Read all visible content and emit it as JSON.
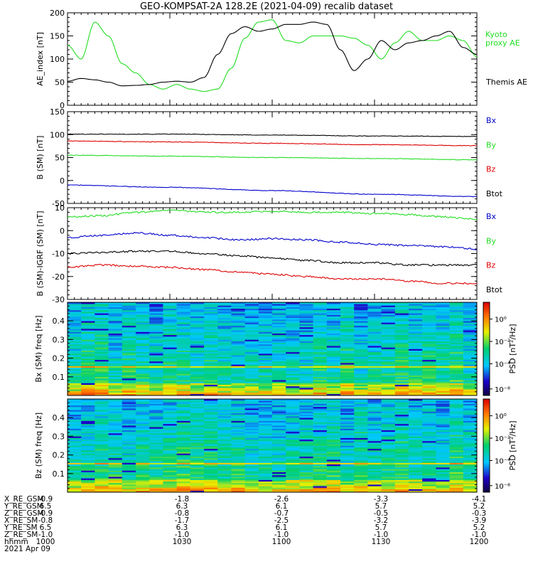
{
  "title": "GEO-KOMPSAT-2A 128.2E (2021-04-09) recalib dataset",
  "colors": {
    "black": "#000000",
    "green": "#22dd22",
    "blue": "#0000cc",
    "red": "#dd0000"
  },
  "xticks": 5,
  "chart_data": [
    {
      "type": "line",
      "ylabel": "AE_index [nT]",
      "ylim": [
        0,
        200
      ],
      "yticks": [
        0,
        50,
        100,
        150,
        200
      ],
      "x": [
        0,
        4,
        8,
        12,
        16,
        20,
        24,
        28,
        32,
        36,
        40,
        44,
        48,
        52,
        56,
        60,
        64,
        68,
        72,
        76,
        80,
        84,
        88,
        92,
        96,
        100,
        104,
        108,
        112,
        116,
        120
      ],
      "series": [
        {
          "name": "Kyoto proxy AE",
          "color": "#22dd22",
          "values": [
            130,
            100,
            180,
            150,
            90,
            70,
            45,
            35,
            45,
            35,
            30,
            35,
            80,
            145,
            180,
            185,
            140,
            135,
            150,
            150,
            150,
            145,
            130,
            100,
            135,
            160,
            140,
            140,
            150,
            140,
            105
          ]
        },
        {
          "name": "Themis AE",
          "color": "#000000",
          "values": [
            52,
            58,
            55,
            50,
            42,
            43,
            45,
            50,
            52,
            50,
            60,
            110,
            155,
            170,
            160,
            165,
            175,
            175,
            180,
            175,
            120,
            75,
            100,
            140,
            120,
            135,
            140,
            150,
            160,
            125,
            110
          ]
        }
      ],
      "legend": [
        "Kyoto proxy AE",
        "Themis AE"
      ]
    },
    {
      "type": "line",
      "ylabel": "B (SM) [nT]",
      "ylim": [
        -50,
        150
      ],
      "yticks": [
        -50,
        0,
        50,
        100,
        150
      ],
      "x": [
        0,
        30,
        60,
        90,
        120
      ],
      "series": [
        {
          "name": "Btot",
          "color": "#000000",
          "values": [
            101,
            101,
            99,
            97,
            96
          ]
        },
        {
          "name": "By",
          "color": "#22dd22",
          "values": [
            55,
            53,
            50,
            48,
            45
          ]
        },
        {
          "name": "Bz",
          "color": "#dd0000",
          "values": [
            86,
            84,
            81,
            78,
            76
          ]
        },
        {
          "name": "Bx",
          "color": "#0000cc",
          "values": [
            -10,
            -15,
            -22,
            -30,
            -35
          ]
        }
      ],
      "legend": [
        "Bx",
        "By",
        "Bz",
        "Btot"
      ]
    },
    {
      "type": "line",
      "ylabel": "B (SM)-IGRF (SM) [nT]",
      "ylim": [
        -30,
        10
      ],
      "yticks": [
        -30,
        -20,
        -10,
        0,
        10
      ],
      "x": [
        0,
        10,
        20,
        30,
        40,
        50,
        60,
        70,
        80,
        90,
        100,
        110,
        120
      ],
      "series": [
        {
          "name": "By",
          "color": "#22dd22",
          "values": [
            6,
            6.5,
            8,
            9,
            8,
            8,
            8.5,
            8,
            8,
            7.5,
            7,
            6,
            5
          ]
        },
        {
          "name": "Bx",
          "color": "#0000cc",
          "values": [
            -3,
            -2,
            -1,
            -2,
            -3,
            -4,
            -3.5,
            -4,
            -5,
            -6,
            -6.5,
            -7,
            -8
          ]
        },
        {
          "name": "Btot",
          "color": "#000000",
          "values": [
            -10,
            -9.5,
            -9,
            -9,
            -10,
            -11,
            -12,
            -13,
            -14,
            -14,
            -15,
            -15,
            -15
          ]
        },
        {
          "name": "Bz",
          "color": "#dd0000",
          "values": [
            -16,
            -15,
            -15.5,
            -16,
            -17,
            -18,
            -19,
            -20,
            -21,
            -21,
            -22,
            -23,
            -23
          ]
        }
      ],
      "legend": [
        "Bx",
        "By",
        "Bz",
        "Btot"
      ]
    },
    {
      "type": "heatmap",
      "ylabel": "Bx (SM) freq [Hz]",
      "ylim": [
        0,
        0.5
      ],
      "yticks": [
        0.1,
        0.2,
        0.3,
        0.4
      ],
      "cbar_label": "PSD [nT²/Hz]",
      "cbar_ticks": [
        "10⁰",
        "10⁻²",
        "10⁻⁴",
        "10⁻⁸"
      ],
      "seed": 7
    },
    {
      "type": "heatmap",
      "ylabel": "Bz (SM) freq [Hz]",
      "ylim": [
        0,
        0.5
      ],
      "yticks": [
        0.1,
        0.2,
        0.3,
        0.4
      ],
      "cbar_label": "PSD [nT²/Hz]",
      "cbar_ticks": [
        "10⁰",
        "10⁻²",
        "10⁻⁴",
        "10⁻⁸"
      ],
      "seed": 19
    }
  ],
  "orbit": {
    "rows": [
      {
        "label": "X_RE_GSM",
        "values": [
          "-0.9",
          "-1.8",
          "-2.6",
          "-3.3",
          "-4.1"
        ]
      },
      {
        "label": "Y_RE_GSM",
        "values": [
          "6.5",
          "6.3",
          "6.1",
          "5.7",
          "5.2"
        ]
      },
      {
        "label": "Z_RE_GSM",
        "values": [
          "-0.9",
          "-0.8",
          "-0.7",
          "-0.5",
          "-0.3"
        ]
      },
      {
        "label": "X_RE_SM",
        "values": [
          "-0.8",
          "-1.7",
          "-2.5",
          "-3.2",
          "-3.9"
        ]
      },
      {
        "label": "Y_RE_SM",
        "values": [
          "6.5",
          "6.3",
          "6.1",
          "5.7",
          "5.2"
        ]
      },
      {
        "label": "Z_RE_SM",
        "values": [
          "-1.0",
          "-1.0",
          "-1.0",
          "-1.0",
          "-1.0"
        ]
      },
      {
        "label": "hhmm",
        "values": [
          "1000",
          "1030",
          "1100",
          "1130",
          "1200"
        ]
      }
    ],
    "date": "2021 Apr 09"
  }
}
